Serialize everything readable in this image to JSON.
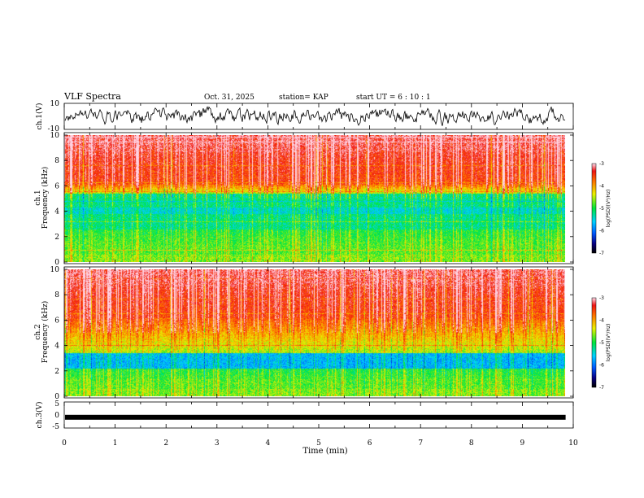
{
  "chart_data": {
    "type": "heatmap",
    "title": "VLF Spectra",
    "date": "Oct. 31, 2025",
    "station": "station= KAP",
    "start_ut": "start  UT =  6 : 10 : 1",
    "xlabel": "Time  (min)",
    "xlim": [
      0,
      10
    ],
    "x_ticks": [
      "0",
      "1",
      "2",
      "3",
      "4",
      "5",
      "6",
      "7",
      "8",
      "9",
      "10"
    ],
    "data_end_min": 9.85,
    "panels": [
      {
        "id": "ch1-waveform",
        "kind": "line",
        "ylabel": "ch.1(V)",
        "ylim": [
          -10,
          10
        ],
        "y_ticks": [
          "10",
          "-10"
        ]
      },
      {
        "id": "ch1-spectrogram",
        "kind": "heatmap",
        "ylabel_top": "ch.1",
        "ylabel": "Frequency  (kHz)",
        "ylim": [
          0,
          10
        ],
        "y_ticks": [
          "0",
          "2",
          "4",
          "6",
          "8",
          "10"
        ],
        "quiet_band_khz": [
          2.6,
          5.4
        ],
        "colorbar": {
          "label": "log(PSD)(V²/Hz)",
          "range": [
            -7,
            -3
          ],
          "ticks": [
            "-3",
            "-4",
            "-5",
            "-6",
            "-7"
          ]
        }
      },
      {
        "id": "ch2-spectrogram",
        "kind": "heatmap",
        "ylabel_top": "ch.2",
        "ylabel": "Frequency  (kHz)",
        "ylim": [
          0,
          10
        ],
        "y_ticks": [
          "0",
          "2",
          "4",
          "6",
          "8",
          "10"
        ],
        "quiet_band_khz": [
          2.2,
          3.4
        ],
        "colorbar": {
          "label": "log(PSD)(V²/Hz)",
          "range": [
            -7,
            -3
          ],
          "ticks": [
            "-3",
            "-4",
            "-5",
            "-6",
            "-7"
          ]
        }
      },
      {
        "id": "ch3-waveform",
        "kind": "line",
        "ylabel": "ch.3(V)",
        "ylim": [
          -5,
          5
        ],
        "y_ticks": [
          "5",
          "0",
          "-5"
        ],
        "baseline_value": -1
      }
    ]
  }
}
